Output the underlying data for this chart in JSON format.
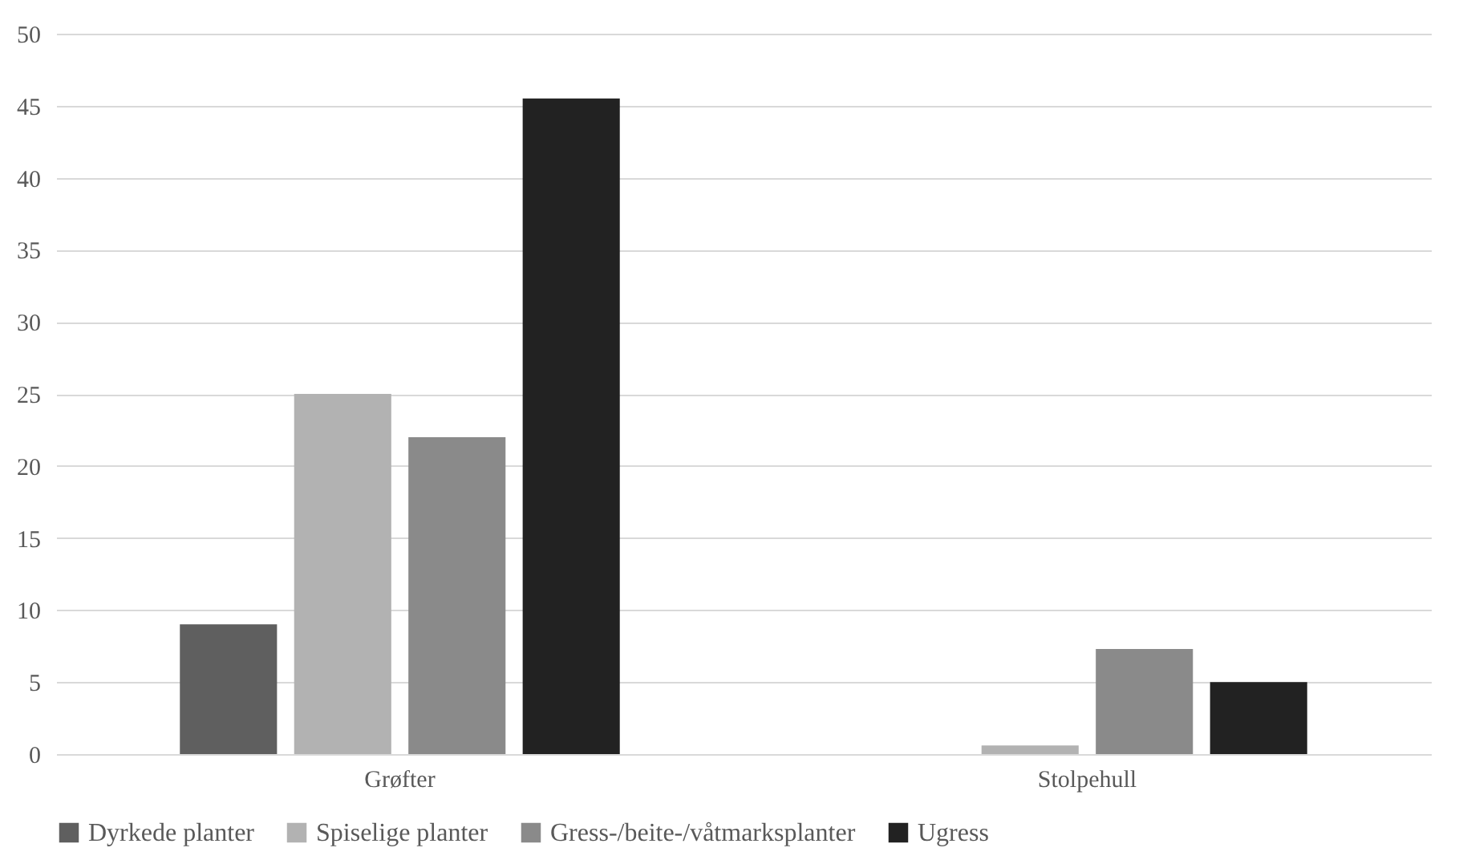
{
  "chart_data": {
    "type": "bar",
    "categories": [
      "Grøfter",
      "Stolpehull"
    ],
    "series": [
      {
        "name": "Dyrkede planter",
        "color": "#5f5f5f",
        "values": [
          9,
          0
        ]
      },
      {
        "name": "Spiselige planter",
        "color": "#b2b2b2",
        "values": [
          25,
          0.6
        ]
      },
      {
        "name": "Gress-/beite-/våtmarksplanter",
        "color": "#8a8a8a",
        "values": [
          22,
          7.3
        ]
      },
      {
        "name": "Ugress",
        "color": "#222222",
        "values": [
          45.5,
          5
        ]
      }
    ],
    "ylim": [
      0,
      50
    ],
    "yticks": [
      0,
      5,
      10,
      15,
      20,
      25,
      30,
      35,
      40,
      45,
      50
    ],
    "grid": "y",
    "legend": "bottom"
  }
}
